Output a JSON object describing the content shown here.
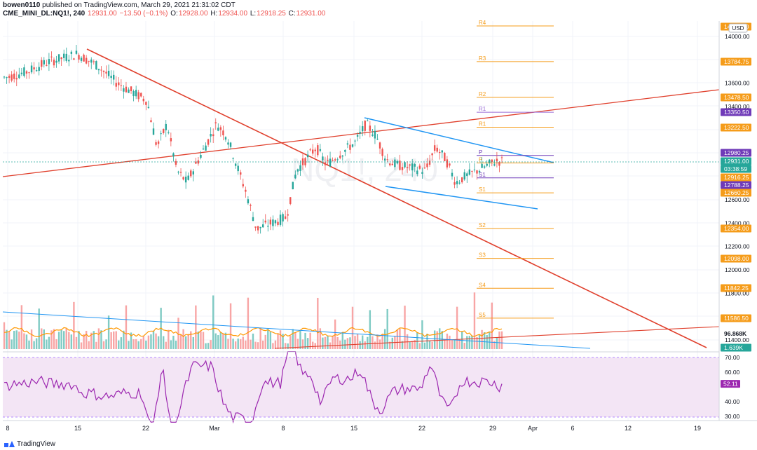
{
  "header": {
    "author": "bowen0110",
    "published": "published on TradingView.com, March 29, 2021 21:31:02 CDT",
    "symbol": "CME_MINI_DL:NQ1!, 240",
    "last": "12931.00",
    "change": "−13.50 (−0.1%)",
    "o_label": "O:",
    "o": "12928.00",
    "h_label": "H:",
    "h": "12934.00",
    "l_label": "L:",
    "l": "12918.25",
    "c_label": "C:",
    "c": "12931.00"
  },
  "currency": "USD",
  "watermark": "NQ1!, 240",
  "price_axis": [
    "14000.00",
    "13800.00",
    "13600.00",
    "13400.00",
    "12600.00",
    "12400.00",
    "12200.00",
    "12000.00",
    "11800.00",
    "11400.00"
  ],
  "price_tags": [
    {
      "text": "14210.00",
      "bg": "#f59c1a"
    },
    {
      "text": "13784.75",
      "bg": "#f59c1a"
    },
    {
      "text": "13478.50",
      "bg": "#f59c1a"
    },
    {
      "text": "13350.50",
      "bg": "#6f3ab8"
    },
    {
      "text": "13222.50",
      "bg": "#f59c1a"
    },
    {
      "text": "12980.25",
      "bg": "#6f3ab8"
    },
    {
      "text": "12931.00",
      "bg": "#26a69a"
    },
    {
      "text": "03:38:59",
      "bg": "#26a69a"
    },
    {
      "text": "12916.25",
      "bg": "#f59c1a"
    },
    {
      "text": "12788.25",
      "bg": "#6f3ab8"
    },
    {
      "text": "12660.25",
      "bg": "#f59c1a"
    },
    {
      "text": "12354.00",
      "bg": "#f59c1a"
    },
    {
      "text": "12098.00",
      "bg": "#f59c1a"
    },
    {
      "text": "11842.25",
      "bg": "#f59c1a"
    },
    {
      "text": "11586.50",
      "bg": "#f59c1a"
    },
    {
      "text": "96.868K",
      "bg": "#ffffff"
    },
    {
      "text": "1.639K",
      "bg": "#26a69a"
    }
  ],
  "pivots": [
    {
      "label": "R4",
      "color": "#f59c1a"
    },
    {
      "label": "R3",
      "color": "#f59c1a"
    },
    {
      "label": "R2",
      "color": "#f59c1a"
    },
    {
      "label": "R1",
      "color": "#9c6fd6"
    },
    {
      "label": "R1",
      "color": "#f59c1a"
    },
    {
      "label": "P",
      "color": "#6f3ab8"
    },
    {
      "label": "P",
      "color": "#f59c1a"
    },
    {
      "label": "S1",
      "color": "#6f3ab8"
    },
    {
      "label": "S1",
      "color": "#f59c1a"
    },
    {
      "label": "S2",
      "color": "#f59c1a"
    },
    {
      "label": "S3",
      "color": "#f59c1a"
    },
    {
      "label": "S4",
      "color": "#f59c1a"
    },
    {
      "label": "S5",
      "color": "#f59c1a"
    }
  ],
  "rsi_axis": [
    "70.00",
    "60.00",
    "40.00",
    "30.00"
  ],
  "rsi_value": "52.11",
  "time_axis": [
    "8",
    "15",
    "22",
    "Mar",
    "8",
    "15",
    "22",
    "29",
    "Apr",
    "6",
    "12",
    "19"
  ],
  "brand": "TradingView",
  "colors": {
    "up": "#26a69a",
    "down": "#ef5350",
    "trend_red": "#e0402d",
    "trend_blue": "#2196f3",
    "pivot": "#f59c1a",
    "rsi": "#9c27b0"
  },
  "chart_data": {
    "type": "candlestick",
    "interval": "240",
    "x_range": [
      "Feb 8, 2021",
      "Apr 22, 2021"
    ],
    "ylim": [
      11300,
      14150
    ],
    "pivot_levels": [
      {
        "label": "R4",
        "value": 14210.0
      },
      {
        "label": "R3",
        "value": 13784.75
      },
      {
        "label": "R2",
        "value": 13478.5
      },
      {
        "label": "R1",
        "value": 13350.5
      },
      {
        "label": "R1",
        "value": 13222.5
      },
      {
        "label": "P",
        "value": 12980.25
      },
      {
        "label": "P",
        "value": 12916.25
      },
      {
        "label": "S1",
        "value": 12788.25
      },
      {
        "label": "S1",
        "value": 12660.25
      },
      {
        "label": "S2",
        "value": 12354.0
      },
      {
        "label": "S3",
        "value": 12098.0
      },
      {
        "label": "S4",
        "value": 11842.25
      },
      {
        "label": "S5",
        "value": 11586.5
      }
    ],
    "price_path": [
      [
        "Feb 8",
        13650
      ],
      [
        "Feb 10",
        13700
      ],
      [
        "Feb 12",
        13780
      ],
      [
        "Feb 15",
        13850
      ],
      [
        "Feb 17",
        13750
      ],
      [
        "Feb 19",
        13600
      ],
      [
        "Feb 22",
        13450
      ],
      [
        "Feb 23",
        13050
      ],
      [
        "Feb 24",
        13250
      ],
      [
        "Feb 25",
        12850
      ],
      [
        "Feb 26",
        12750
      ],
      [
        "Mar 1",
        13250
      ],
      [
        "Mar 2",
        13150
      ],
      [
        "Mar 3",
        12900
      ],
      [
        "Mar 4",
        12650
      ],
      [
        "Mar 5",
        12350
      ],
      [
        "Mar 8",
        12450
      ],
      [
        "Mar 9",
        12850
      ],
      [
        "Mar 11",
        13050
      ],
      [
        "Mar 12",
        12900
      ],
      [
        "Mar 15",
        13100
      ],
      [
        "Mar 16",
        13250
      ],
      [
        "Mar 17",
        13150
      ],
      [
        "Mar 18",
        12950
      ],
      [
        "Mar 19",
        12900
      ],
      [
        "Mar 22",
        12850
      ],
      [
        "Mar 23",
        13050
      ],
      [
        "Mar 24",
        12950
      ],
      [
        "Mar 25",
        12750
      ],
      [
        "Mar 26",
        12800
      ],
      [
        "Mar 29",
        12931
      ]
    ],
    "rsi": {
      "last": 52.11,
      "ylim": [
        25,
        75
      ],
      "band": [
        30,
        70
      ]
    },
    "volume": {
      "ma": 96868
    }
  }
}
